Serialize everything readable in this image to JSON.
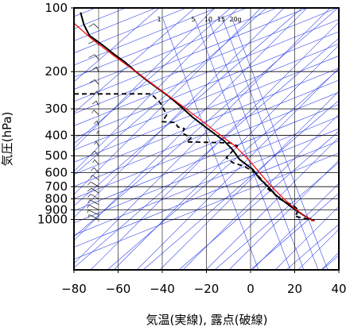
{
  "chart_data": {
    "type": "skew-t",
    "xlabel": "気温(実線), 露点(破線)",
    "ylabel": "気圧(hPa)",
    "x_ticks": [
      -80,
      -60,
      -40,
      -20,
      0,
      20,
      40
    ],
    "x_tick_labels": [
      "−80",
      "−60",
      "−40",
      "−20",
      "0",
      "20",
      "40"
    ],
    "xlim": [
      -80,
      40
    ],
    "y_scale": "log",
    "ylim": [
      1030,
      100
    ],
    "y_ticks": [
      100,
      200,
      300,
      400,
      500,
      600,
      700,
      800,
      900,
      1000
    ],
    "grid": true,
    "mixing_ratio_labels": [
      "1",
      "5",
      "10",
      "15",
      "20g"
    ],
    "mixing_ratio_values": [
      1,
      5,
      10,
      15,
      20
    ],
    "colors": {
      "temperature": "#000000",
      "dewpoint": "#000000",
      "parcel": "#ff0000",
      "guides": "#3344ee",
      "grid": "#000000"
    },
    "series": [
      {
        "style": "solid",
        "points": [
          [
            -77,
            105
          ],
          [
            -75.5,
            120
          ],
          [
            -73,
            135
          ],
          [
            -67,
            150
          ],
          [
            -62,
            165
          ],
          [
            -57,
            180
          ],
          [
            -52,
            200
          ],
          [
            -47,
            220
          ],
          [
            -42,
            240
          ],
          [
            -37,
            262
          ],
          [
            -32,
            290
          ],
          [
            -26,
            330
          ],
          [
            -19,
            375
          ],
          [
            -12,
            425
          ],
          [
            -8,
            470
          ],
          [
            -5,
            520
          ],
          [
            1,
            580
          ],
          [
            4,
            640
          ],
          [
            8,
            700
          ],
          [
            11,
            760
          ],
          [
            15,
            820
          ],
          [
            19,
            880
          ],
          [
            23,
            940
          ],
          [
            26,
            985
          ],
          [
            29,
            1015
          ]
        ]
      },
      {
        "style": "dashed",
        "points": [
          [
            -80,
            255
          ],
          [
            -45,
            255
          ],
          [
            -41,
            280
          ],
          [
            -38,
            320
          ],
          [
            -40,
            345
          ],
          [
            -34,
            348
          ],
          [
            -33,
            365
          ],
          [
            -30,
            372
          ],
          [
            -31,
            390
          ],
          [
            -27,
            412
          ],
          [
            -29,
            430
          ],
          [
            -20,
            432
          ],
          [
            -9,
            435
          ],
          [
            -6,
            450
          ],
          [
            -11,
            510
          ],
          [
            -8,
            540
          ],
          [
            -3,
            560
          ],
          [
            2,
            600
          ],
          [
            6,
            665
          ],
          [
            8,
            720
          ],
          [
            11,
            760
          ],
          [
            13,
            800
          ],
          [
            19,
            855
          ],
          [
            22,
            905
          ],
          [
            20,
            965
          ],
          [
            26,
            1000
          ],
          [
            28,
            1015
          ]
        ]
      },
      {
        "style": "solid",
        "points": [
          [
            -80,
            118
          ],
          [
            -72,
            140
          ],
          [
            -62,
            168
          ],
          [
            -52,
            200
          ],
          [
            -43,
            235
          ],
          [
            -34,
            275
          ],
          [
            -24,
            330
          ],
          [
            -15,
            390
          ],
          [
            -7,
            450
          ],
          [
            -1,
            520
          ],
          [
            4,
            600
          ],
          [
            9,
            690
          ],
          [
            14,
            780
          ],
          [
            19,
            870
          ],
          [
            23,
            940
          ],
          [
            27,
            1000
          ],
          [
            29,
            1015
          ]
        ]
      }
    ],
    "wind_profile": [
      [
        100,
        -8,
        10
      ],
      [
        125,
        -6,
        25
      ],
      [
        150,
        -4,
        35
      ],
      [
        175,
        -5,
        30
      ],
      [
        200,
        -3,
        20
      ],
      [
        230,
        -5,
        25
      ],
      [
        260,
        -2,
        15
      ],
      [
        290,
        -3,
        20
      ],
      [
        320,
        -6,
        10
      ],
      [
        360,
        -2,
        15
      ],
      [
        400,
        0,
        10
      ],
      [
        450,
        -3,
        10
      ],
      [
        500,
        -5,
        15
      ],
      [
        550,
        -5,
        10
      ],
      [
        600,
        -6,
        15
      ],
      [
        650,
        -8,
        10
      ],
      [
        700,
        -10,
        15
      ],
      [
        750,
        -9,
        20
      ],
      [
        800,
        -10,
        15
      ],
      [
        850,
        -11,
        10
      ],
      [
        900,
        -12,
        10
      ],
      [
        950,
        -13,
        5
      ],
      [
        1000,
        -12,
        5
      ]
    ]
  }
}
